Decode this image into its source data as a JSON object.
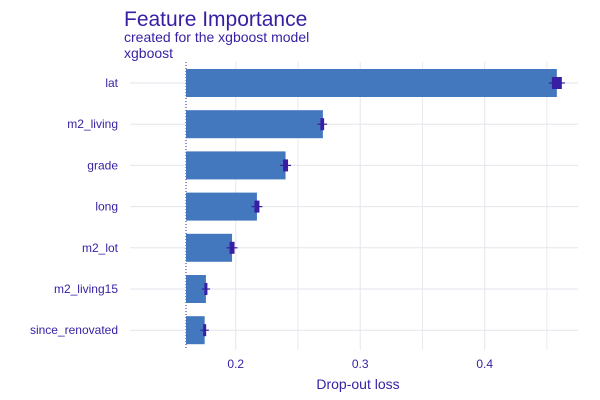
{
  "chart_data": {
    "type": "bar",
    "orientation": "horizontal",
    "title": "Feature Importance",
    "subtitle": "created for the xgboost model",
    "model_label": "xgboost",
    "xlabel": "Drop-out loss",
    "ylabel": "",
    "baseline": 0.16,
    "xlim": [
      0.115,
      0.475
    ],
    "xticks": [
      0.2,
      0.3,
      0.4
    ],
    "xtick_labels": [
      "0.2",
      "0.3",
      "0.4"
    ],
    "grid": true,
    "categories": [
      "lat",
      "m2_living",
      "grade",
      "long",
      "m2_lot",
      "m2_living15",
      "since_renovated"
    ],
    "values": [
      0.458,
      0.27,
      0.24,
      0.217,
      0.197,
      0.176,
      0.175
    ],
    "error_low": [
      0.454,
      0.268,
      0.238,
      0.215,
      0.195,
      0.175,
      0.174
    ],
    "error_high": [
      0.462,
      0.271,
      0.242,
      0.219,
      0.199,
      0.177,
      0.176
    ],
    "colors": {
      "bar": "#4378bf",
      "error": "#371ea3",
      "text": "#371ea3",
      "grid": "#e5e5ec",
      "baseline": "#371ea3"
    }
  }
}
